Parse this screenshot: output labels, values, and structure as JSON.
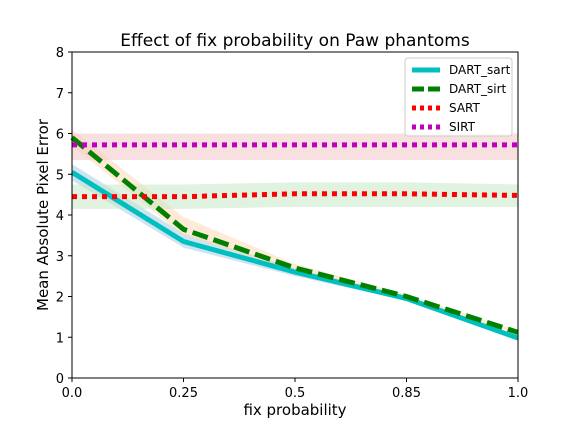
{
  "chart_data": {
    "type": "line",
    "title": "Effect of fix probability on Paw phantoms",
    "xlabel": "fix probability",
    "ylabel": "Mean Absolute Pixel Error",
    "x_ticks": [
      "0.0",
      "0.25",
      "0.5",
      "0.85",
      "1.0"
    ],
    "x_tick_positions": [
      0,
      1,
      2,
      3,
      4
    ],
    "y_ticks": [
      "0",
      "1",
      "2",
      "3",
      "4",
      "5",
      "6",
      "7",
      "8"
    ],
    "xlim": [
      0,
      4
    ],
    "ylim": [
      0,
      8
    ],
    "legend_position": "top-right",
    "series": [
      {
        "name": "DART_sart",
        "color": "#00bfbf",
        "style": "solid",
        "values": [
          5.05,
          3.35,
          2.6,
          1.95,
          0.98
        ],
        "band": {
          "lower": [
            4.85,
            3.2,
            2.5,
            1.9,
            0.95
          ],
          "upper": [
            5.25,
            3.55,
            2.7,
            2.02,
            1.02
          ],
          "color": "#a6cee3"
        }
      },
      {
        "name": "DART_sirt",
        "color": "#008000",
        "style": "dashed",
        "values": [
          5.9,
          3.65,
          2.7,
          2.0,
          1.12
        ],
        "band": {
          "lower": [
            5.7,
            3.5,
            2.62,
            1.96,
            1.08
          ],
          "upper": [
            6.1,
            3.95,
            2.8,
            2.05,
            1.16
          ],
          "color": "#fdd9b5"
        }
      },
      {
        "name": "SART",
        "color": "#ff0000",
        "style": "dotted",
        "values": [
          4.45,
          4.45,
          4.52,
          4.52,
          4.48
        ],
        "band": {
          "lower": [
            4.15,
            4.15,
            4.2,
            4.2,
            4.2
          ],
          "upper": [
            4.75,
            4.75,
            4.8,
            4.8,
            4.75
          ],
          "color": "#c6e8c6"
        }
      },
      {
        "name": "SIRT",
        "color": "#bf00bf",
        "style": "dotted",
        "values": [
          5.72,
          5.72,
          5.72,
          5.72,
          5.72
        ],
        "band": {
          "lower": [
            5.35,
            5.35,
            5.35,
            5.35,
            5.35
          ],
          "upper": [
            6.0,
            6.0,
            6.0,
            6.0,
            6.0
          ],
          "color": "#f4c6c6"
        }
      }
    ]
  }
}
